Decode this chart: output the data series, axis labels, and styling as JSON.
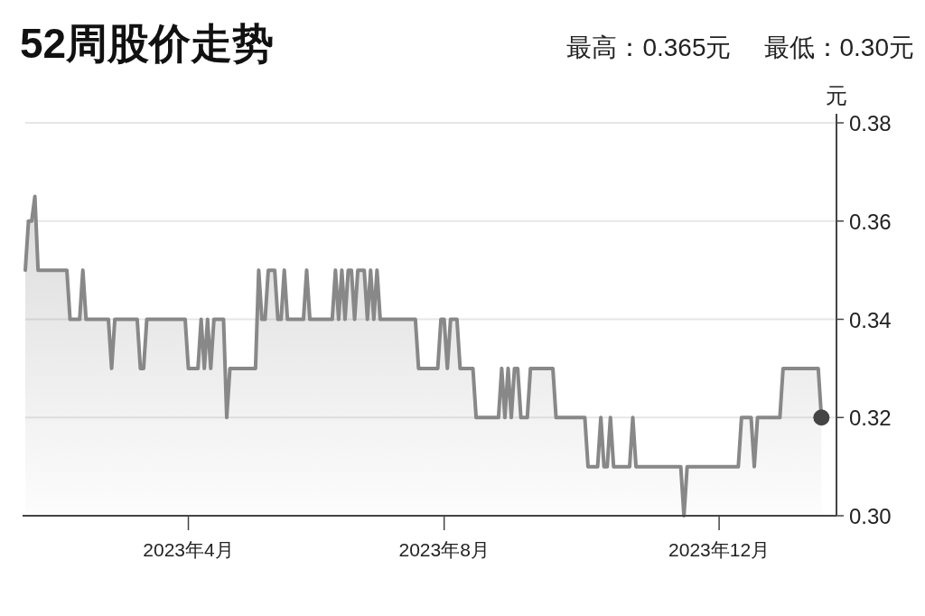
{
  "chart_data": {
    "type": "area",
    "title": "52周股价走势",
    "annotations": [
      "最高：0.365元",
      "最低：0.30元"
    ],
    "ylabel": "元",
    "grid": "y",
    "ylim": [
      0.3,
      0.38
    ],
    "yticks": [
      {
        "value": 0.3,
        "label": "0.30"
      },
      {
        "value": 0.32,
        "label": "0.32"
      },
      {
        "value": 0.34,
        "label": "0.34"
      },
      {
        "value": 0.36,
        "label": "0.36"
      },
      {
        "value": 0.38,
        "label": "0.38"
      }
    ],
    "categories": [
      null,
      null,
      null,
      null,
      null,
      null,
      null,
      null,
      null,
      null,
      null,
      null,
      null,
      null,
      null,
      null,
      null,
      null,
      null,
      null,
      null,
      null,
      null,
      null,
      null,
      null,
      null,
      null,
      null,
      null,
      null,
      null,
      null,
      null,
      null,
      null,
      null,
      null,
      null,
      null,
      null,
      null,
      null,
      null,
      null,
      null,
      null,
      null,
      null,
      null,
      null,
      "2023年4月",
      null,
      null,
      null,
      null,
      null,
      null,
      null,
      null,
      null,
      null,
      null,
      null,
      null,
      null,
      null,
      null,
      null,
      null,
      null,
      null,
      null,
      null,
      null,
      null,
      null,
      null,
      null,
      null,
      null,
      null,
      null,
      null,
      null,
      null,
      null,
      null,
      null,
      null,
      null,
      null,
      null,
      null,
      null,
      null,
      null,
      null,
      null,
      null,
      null,
      null,
      null,
      null,
      null,
      null,
      null,
      null,
      null,
      null,
      null,
      null,
      null,
      null,
      null,
      null,
      null,
      null,
      null,
      null,
      null,
      null,
      null,
      null,
      null,
      null,
      null,
      null,
      null,
      null,
      null,
      "2023年8月",
      null,
      null,
      null,
      null,
      null,
      null,
      null,
      null,
      null,
      null,
      null,
      null,
      null,
      null,
      null,
      null,
      null,
      null,
      null,
      null,
      null,
      null,
      null,
      null,
      null,
      null,
      null,
      null,
      null,
      null,
      null,
      null,
      null,
      null,
      null,
      null,
      null,
      null,
      null,
      null,
      null,
      null,
      null,
      null,
      null,
      null,
      null,
      null,
      null,
      null,
      null,
      null,
      null,
      null,
      null,
      null,
      null,
      null,
      null,
      null,
      null,
      null,
      null,
      null,
      null,
      null,
      null,
      null,
      null,
      null,
      null,
      null,
      null,
      null,
      null,
      null,
      null,
      null,
      null,
      null,
      null,
      null,
      null,
      null,
      null,
      "2023年12月",
      null,
      null,
      null,
      null,
      null,
      null,
      null,
      null,
      null,
      null,
      null,
      null,
      null,
      null,
      null,
      null,
      null,
      null,
      null,
      null,
      null,
      null,
      null,
      null,
      null,
      null,
      null,
      null,
      null,
      null,
      null,
      null
    ],
    "series": [
      {
        "color": "#888888",
        "values": [
          0.35,
          0.36,
          0.36,
          0.365,
          0.35,
          0.35,
          0.35,
          0.35,
          0.35,
          0.35,
          0.35,
          0.35,
          0.35,
          0.35,
          0.34,
          0.34,
          0.34,
          0.34,
          0.35,
          0.34,
          0.34,
          0.34,
          0.34,
          0.34,
          0.34,
          0.34,
          0.34,
          0.33,
          0.34,
          0.34,
          0.34,
          0.34,
          0.34,
          0.34,
          0.34,
          0.34,
          0.33,
          0.33,
          0.34,
          0.34,
          0.34,
          0.34,
          0.34,
          0.34,
          0.34,
          0.34,
          0.34,
          0.34,
          0.34,
          0.34,
          0.34,
          0.33,
          0.33,
          0.33,
          0.33,
          0.34,
          0.33,
          0.34,
          0.33,
          0.34,
          0.34,
          0.34,
          0.34,
          0.32,
          0.33,
          0.33,
          0.33,
          0.33,
          0.33,
          0.33,
          0.33,
          0.33,
          0.33,
          0.35,
          0.34,
          0.34,
          0.35,
          0.35,
          0.35,
          0.34,
          0.34,
          0.35,
          0.34,
          0.34,
          0.34,
          0.34,
          0.34,
          0.34,
          0.35,
          0.34,
          0.34,
          0.34,
          0.34,
          0.34,
          0.34,
          0.34,
          0.34,
          0.35,
          0.34,
          0.35,
          0.34,
          0.35,
          0.35,
          0.34,
          0.35,
          0.35,
          0.35,
          0.34,
          0.35,
          0.34,
          0.35,
          0.34,
          0.34,
          0.34,
          0.34,
          0.34,
          0.34,
          0.34,
          0.34,
          0.34,
          0.34,
          0.34,
          0.34,
          0.33,
          0.33,
          0.33,
          0.33,
          0.33,
          0.33,
          0.33,
          0.34,
          0.34,
          0.33,
          0.34,
          0.34,
          0.34,
          0.33,
          0.33,
          0.33,
          0.33,
          0.33,
          0.32,
          0.32,
          0.32,
          0.32,
          0.32,
          0.32,
          0.32,
          0.32,
          0.33,
          0.32,
          0.33,
          0.32,
          0.33,
          0.33,
          0.32,
          0.32,
          0.32,
          0.33,
          0.33,
          0.33,
          0.33,
          0.33,
          0.33,
          0.33,
          0.33,
          0.32,
          0.32,
          0.32,
          0.32,
          0.32,
          0.32,
          0.32,
          0.32,
          0.32,
          0.32,
          0.31,
          0.31,
          0.31,
          0.31,
          0.32,
          0.31,
          0.31,
          0.32,
          0.31,
          0.31,
          0.31,
          0.31,
          0.31,
          0.31,
          0.32,
          0.31,
          0.31,
          0.31,
          0.31,
          0.31,
          0.31,
          0.31,
          0.31,
          0.31,
          0.31,
          0.31,
          0.31,
          0.31,
          0.31,
          0.31,
          0.3,
          0.31,
          0.31,
          0.31,
          0.31,
          0.31,
          0.31,
          0.31,
          0.31,
          0.31,
          0.31,
          0.31,
          0.31,
          0.31,
          0.31,
          0.31,
          0.31,
          0.31,
          0.32,
          0.32,
          0.32,
          0.32,
          0.31,
          0.32,
          0.32,
          0.32,
          0.32,
          0.32,
          0.32,
          0.32,
          0.32,
          0.33,
          0.33,
          0.33,
          0.33,
          0.33,
          0.33,
          0.33,
          0.33,
          0.33,
          0.33,
          0.33,
          0.33,
          0.32
        ]
      },
      {
        "type": "scatter",
        "marker": "circle",
        "color": "#444444",
        "values": [
          null,
          null,
          null,
          null,
          null,
          null,
          null,
          null,
          null,
          null,
          null,
          null,
          null,
          null,
          null,
          null,
          null,
          null,
          null,
          null,
          null,
          null,
          null,
          null,
          null,
          null,
          null,
          null,
          null,
          null,
          null,
          null,
          null,
          null,
          null,
          null,
          null,
          null,
          null,
          null,
          null,
          null,
          null,
          null,
          null,
          null,
          null,
          null,
          null,
          null,
          null,
          null,
          null,
          null,
          null,
          null,
          null,
          null,
          null,
          null,
          null,
          null,
          null,
          null,
          null,
          null,
          null,
          null,
          null,
          null,
          null,
          null,
          null,
          null,
          null,
          null,
          null,
          null,
          null,
          null,
          null,
          null,
          null,
          null,
          null,
          null,
          null,
          null,
          null,
          null,
          null,
          null,
          null,
          null,
          null,
          null,
          null,
          null,
          null,
          null,
          null,
          null,
          null,
          null,
          null,
          null,
          null,
          null,
          null,
          null,
          null,
          null,
          null,
          null,
          null,
          null,
          null,
          null,
          null,
          null,
          null,
          null,
          null,
          null,
          null,
          null,
          null,
          null,
          null,
          null,
          null,
          null,
          null,
          null,
          null,
          null,
          null,
          null,
          null,
          null,
          null,
          null,
          null,
          null,
          null,
          null,
          null,
          null,
          null,
          null,
          null,
          null,
          null,
          null,
          null,
          null,
          null,
          null,
          null,
          null,
          null,
          null,
          null,
          null,
          null,
          null,
          null,
          null,
          null,
          null,
          null,
          null,
          null,
          null,
          null,
          null,
          null,
          null,
          null,
          null,
          null,
          null,
          null,
          null,
          null,
          null,
          null,
          null,
          null,
          null,
          null,
          null,
          null,
          null,
          null,
          null,
          null,
          null,
          null,
          null,
          null,
          null,
          null,
          null,
          null,
          null,
          null,
          null,
          null,
          null,
          null,
          null,
          null,
          null,
          null,
          null,
          null,
          null,
          null,
          null,
          null,
          null,
          null,
          null,
          null,
          null,
          null,
          null,
          null,
          null,
          null,
          null,
          null,
          null,
          null,
          null,
          null,
          null,
          null,
          null,
          null,
          null,
          null,
          null,
          null,
          null,
          null,
          null,
          null,
          0.32
        ]
      }
    ]
  }
}
